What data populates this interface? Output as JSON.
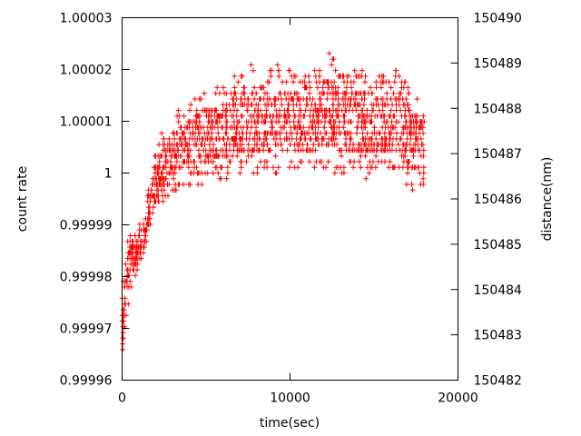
{
  "chart_data": {
    "type": "scatter",
    "title": "",
    "xlabel": "time(sec)",
    "ylabel": "count rate",
    "y2label": "distance(nm)",
    "xlim": [
      0,
      20000
    ],
    "ylim": [
      0.99996,
      1.00003
    ],
    "y2lim": [
      150482,
      150490
    ],
    "x_ticks": [
      0,
      10000,
      20000
    ],
    "x_tick_labels": [
      "0",
      "10000",
      "20000"
    ],
    "y_ticks": [
      0.99996,
      0.99997,
      0.99998,
      0.99999,
      1.0,
      1.00001,
      1.00002,
      1.00003
    ],
    "y_tick_labels": [
      "0.99996",
      "0.99997",
      "0.99998",
      "0.99999",
      "1",
      "1.00001",
      "1.00002",
      "1.00003"
    ],
    "y2_ticks": [
      150482,
      150483,
      150484,
      150485,
      150486,
      150487,
      150488,
      150489,
      150490
    ],
    "y2_tick_labels": [
      "150482",
      "150483",
      "150484",
      "150485",
      "150486",
      "150487",
      "150488",
      "150489",
      "150490"
    ],
    "grid": false,
    "legend": "none",
    "marker": "+",
    "marker_color": "#ff0000",
    "series": [
      {
        "x": [
          0,
          50,
          100,
          150,
          200,
          300,
          400,
          500,
          600,
          700,
          800,
          900,
          1000,
          1100,
          1200,
          1300,
          1400,
          1500,
          1600,
          1700,
          1800,
          1900,
          2000,
          2100,
          2200,
          2300,
          2400,
          2600,
          2800,
          3000,
          3200,
          3400,
          3600,
          3800,
          4000,
          4300,
          4600,
          5000,
          5400,
          5800,
          6200,
          6600,
          7000,
          7500,
          8000,
          8500,
          9000,
          9500,
          10000,
          10500,
          11000,
          11500,
          12000,
          12500,
          13000,
          13500,
          14000,
          14500,
          15000,
          15500,
          16000,
          16500,
          17000,
          17500,
          18000
        ],
        "y_min": [
          0.999964,
          0.999965,
          0.999967,
          0.99997,
          0.99997,
          0.999975,
          0.999975,
          0.999978,
          0.999978,
          0.99998,
          0.99998,
          0.999981,
          0.999982,
          0.999983,
          0.999984,
          0.999985,
          0.999986,
          0.999987,
          0.999988,
          0.999989,
          0.99999,
          0.999991,
          0.999991,
          0.999992,
          0.999993,
          0.999993,
          0.999994,
          0.999995,
          0.999995,
          0.999996,
          0.999996,
          0.999997,
          0.999997,
          0.999998,
          0.999998,
          0.999998,
          0.999998,
          0.999998,
          0.999999,
          0.999999,
          0.999999,
          1.0,
          1.0,
          1.0,
          1.0,
          1.0,
          0.999999,
          1.0,
          1.0,
          1.0,
          1.0,
          1.0,
          1.0,
          1.0,
          1.0,
          1.0,
          1.0,
          0.999999,
          1.0,
          1.0,
          1.0,
          1.0,
          0.999997,
          0.999996,
          0.999998
        ],
        "y_max": [
          0.999975,
          0.999978,
          0.99998,
          0.999982,
          0.999983,
          0.999988,
          0.999988,
          0.999988,
          0.999988,
          0.999988,
          0.999988,
          0.999988,
          0.99999,
          0.99999,
          0.999992,
          0.999992,
          0.999993,
          0.999995,
          0.999998,
          1.0,
          1.000002,
          1.000003,
          1.000004,
          1.000006,
          1.000006,
          1.000007,
          1.000008,
          1.000008,
          1.000009,
          1.00001,
          1.000011,
          1.000012,
          1.000013,
          1.000013,
          1.000014,
          1.000014,
          1.000015,
          1.000016,
          1.000016,
          1.000017,
          1.000017,
          1.000018,
          1.000021,
          1.000021,
          1.00002,
          1.000018,
          1.000021,
          1.00002,
          1.00002,
          1.000019,
          1.000019,
          1.00002,
          1.000023,
          1.000023,
          1.00002,
          1.000019,
          1.00002,
          1.00002,
          1.000019,
          1.000019,
          1.00002,
          1.00002,
          1.000018,
          1.000015,
          1.000015
        ]
      }
    ]
  }
}
